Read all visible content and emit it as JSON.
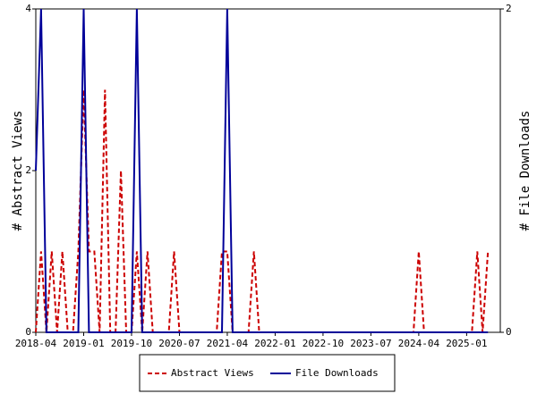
{
  "chart_data": {
    "type": "line",
    "title": "",
    "xlabel": "",
    "ylabel": "# Abstract Views",
    "y2label": "# File Downloads",
    "x_tick_labels": [
      "2018-04",
      "2019-01",
      "2019-10",
      "2020-07",
      "2021-04",
      "2022-01",
      "2022-10",
      "2023-07",
      "2024-04",
      "2025-01"
    ],
    "x_range": [
      "2018-04",
      "2025-04"
    ],
    "ylim": [
      0,
      4
    ],
    "y_ticks": [
      0,
      2,
      4
    ],
    "y2lim": [
      0,
      2
    ],
    "y2_ticks": [
      0,
      2
    ],
    "grid": false,
    "legend_placement": "bottom",
    "series": [
      {
        "name": "Abstract Views",
        "axis": "left",
        "color": "#cc0000",
        "style": "dashed",
        "points": [
          [
            "2018-04",
            0
          ],
          [
            "2018-05",
            1
          ],
          [
            "2018-06",
            0
          ],
          [
            "2018-07",
            1
          ],
          [
            "2018-08",
            0
          ],
          [
            "2018-09",
            1
          ],
          [
            "2018-10",
            0
          ],
          [
            "2018-11",
            0
          ],
          [
            "2018-12",
            1
          ],
          [
            "2019-01",
            3
          ],
          [
            "2019-02",
            1
          ],
          [
            "2019-03",
            1
          ],
          [
            "2019-04",
            0
          ],
          [
            "2019-05",
            3
          ],
          [
            "2019-06",
            0
          ],
          [
            "2019-07",
            0
          ],
          [
            "2019-08",
            2
          ],
          [
            "2019-09",
            0
          ],
          [
            "2019-10",
            0
          ],
          [
            "2019-11",
            1
          ],
          [
            "2019-12",
            0
          ],
          [
            "2020-01",
            1
          ],
          [
            "2020-02",
            0
          ],
          [
            "2020-03",
            0
          ],
          [
            "2020-04",
            0
          ],
          [
            "2020-05",
            0
          ],
          [
            "2020-06",
            1
          ],
          [
            "2020-07",
            0
          ],
          [
            "2020-08",
            0
          ],
          [
            "2020-09",
            0
          ],
          [
            "2020-10",
            0
          ],
          [
            "2020-11",
            0
          ],
          [
            "2020-12",
            0
          ],
          [
            "2021-01",
            0
          ],
          [
            "2021-02",
            0
          ],
          [
            "2021-03",
            1
          ],
          [
            "2021-04",
            1
          ],
          [
            "2021-05",
            0
          ],
          [
            "2021-06",
            0
          ],
          [
            "2021-07",
            0
          ],
          [
            "2021-08",
            0
          ],
          [
            "2021-09",
            1
          ],
          [
            "2021-10",
            0
          ],
          [
            "2024-03",
            0
          ],
          [
            "2024-04",
            1
          ],
          [
            "2024-05",
            0
          ],
          [
            "2025-02",
            0
          ],
          [
            "2025-03",
            1
          ],
          [
            "2025-04",
            0
          ],
          [
            "2025-05",
            1
          ]
        ]
      },
      {
        "name": "File Downloads",
        "axis": "right",
        "color": "#000099",
        "style": "solid",
        "points": [
          [
            "2018-04",
            1
          ],
          [
            "2018-05",
            2
          ],
          [
            "2018-06",
            0
          ],
          [
            "2018-07",
            0
          ],
          [
            "2018-08",
            0
          ],
          [
            "2018-09",
            0
          ],
          [
            "2018-10",
            0
          ],
          [
            "2018-11",
            0
          ],
          [
            "2018-12",
            0
          ],
          [
            "2019-01",
            2
          ],
          [
            "2019-02",
            0
          ],
          [
            "2019-03",
            0
          ],
          [
            "2019-04",
            0
          ],
          [
            "2019-05",
            0
          ],
          [
            "2019-06",
            0
          ],
          [
            "2019-07",
            0
          ],
          [
            "2019-08",
            0
          ],
          [
            "2019-09",
            0
          ],
          [
            "2019-10",
            0
          ],
          [
            "2019-11",
            2
          ],
          [
            "2019-12",
            0
          ],
          [
            "2020-01",
            0
          ],
          [
            "2021-02",
            0
          ],
          [
            "2021-03",
            0
          ],
          [
            "2021-04",
            2
          ],
          [
            "2021-05",
            0
          ],
          [
            "2025-05",
            0
          ]
        ]
      }
    ]
  }
}
